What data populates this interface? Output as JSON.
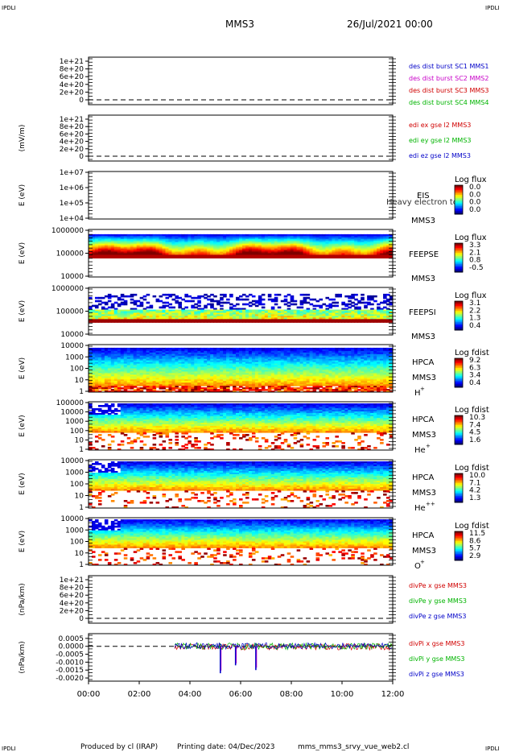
{
  "header": {
    "corner_left_top": "IPDLI",
    "corner_right_top": "IPDLI",
    "corner_left_bottom": "IPDLI",
    "corner_right_bottom": "IPDLI",
    "title": "MMS3",
    "date": "26/Jul/2021 00:00"
  },
  "footer": {
    "produced": "Produced by cl (IRAP)",
    "printing": "Printing date: 04/Dec/2023",
    "script": "mms_mms3_srvy_vue_web2.cl"
  },
  "chart_data": [
    {
      "type": "line",
      "id": "p1",
      "ylabel": "",
      "yticks": [
        "1e+21",
        "8e+20",
        "6e+20",
        "4e+20",
        "2e+20",
        "0"
      ],
      "legend": [
        {
          "name": "des dist burst SC1 MMS1",
          "color": "#0000c8"
        },
        {
          "name": "des dist burst SC2 MMS2",
          "color": "#c800c8"
        },
        {
          "name": "des dist burst SC3 MMS3",
          "color": "#d00000"
        },
        {
          "name": "des dist burst SC4 MMS4",
          "color": "#00b400"
        }
      ],
      "zero_dashed": true
    },
    {
      "type": "line",
      "id": "p2",
      "ylabel": "(mV/m)",
      "yticks": [
        "1e+21",
        "8e+20",
        "6e+20",
        "4e+20",
        "2e+20",
        "0"
      ],
      "legend": [
        {
          "name": "edi ex gse l2 MMS3",
          "color": "#d00000"
        },
        {
          "name": "edi ey gse l2 MMS3",
          "color": "#00b400"
        },
        {
          "name": "edi ez gse l2 MMS3",
          "color": "#0000c8"
        }
      ],
      "zero_dashed": true
    },
    {
      "type": "heatmap",
      "id": "p3",
      "ylabel": "E (eV)",
      "yticks": [
        "1e+07",
        "1e+06",
        "1e+05",
        "1e+04"
      ],
      "labels": [
        "EIS",
        "MMS3"
      ],
      "overlay": "Heavy electron to",
      "cbar_title": "Log flux",
      "cbar_ticks": [
        "0.0",
        "0.0",
        "0.0",
        "0.0"
      ],
      "empty": true
    },
    {
      "type": "heatmap",
      "id": "p4",
      "ylabel": "E (eV)",
      "yticks": [
        "1000000",
        "100000",
        "10000"
      ],
      "labels": [
        "FEEPSE",
        "MMS3"
      ],
      "cbar_title": "Log flux",
      "cbar_ticks": [
        "3.3",
        "2.1",
        "0.8",
        "-0.5"
      ]
    },
    {
      "type": "heatmap",
      "id": "p5",
      "ylabel": "E (eV)",
      "yticks": [
        "1000000",
        "100000",
        "10000"
      ],
      "labels": [
        "FEEPSI",
        "MMS3"
      ],
      "cbar_title": "Log flux",
      "cbar_ticks": [
        "3.1",
        "2.2",
        "1.3",
        "0.4"
      ]
    },
    {
      "type": "heatmap",
      "id": "p6",
      "ylabel": "E (eV)",
      "yticks": [
        "10000",
        "1000",
        "100",
        "10",
        "1"
      ],
      "labels": [
        "HPCA",
        "MMS3"
      ],
      "species": "H",
      "species_sup": "+",
      "cbar_title": "Log fdist",
      "cbar_ticks": [
        "9.2",
        "6.3",
        "3.4",
        "0.4"
      ]
    },
    {
      "type": "heatmap",
      "id": "p7",
      "ylabel": "E (eV)",
      "yticks": [
        "100000",
        "10000",
        "1000",
        "100",
        "10",
        "1"
      ],
      "labels": [
        "HPCA",
        "MMS3"
      ],
      "species": "He",
      "species_sup": "+",
      "cbar_title": "Log fdist",
      "cbar_ticks": [
        "10.3",
        "7.4",
        "4.5",
        "1.6"
      ]
    },
    {
      "type": "heatmap",
      "id": "p8",
      "ylabel": "E (eV)",
      "yticks": [
        "10000",
        "1000",
        "100",
        "10",
        "1"
      ],
      "labels": [
        "HPCA",
        "MMS3"
      ],
      "species": "He",
      "species_sup": "++",
      "cbar_title": "Log fdist",
      "cbar_ticks": [
        "10.0",
        "7.1",
        "4.2",
        "1.3"
      ]
    },
    {
      "type": "heatmap",
      "id": "p9",
      "ylabel": "E (eV)",
      "yticks": [
        "10000",
        "1000",
        "100",
        "10",
        "1"
      ],
      "labels": [
        "HPCA",
        "MMS3"
      ],
      "species": "O",
      "species_sup": "+",
      "cbar_title": "Log fdist",
      "cbar_ticks": [
        "11.5",
        "8.6",
        "5.7",
        "2.9"
      ]
    },
    {
      "type": "line",
      "id": "p10",
      "ylabel": "(nPa/km)",
      "yticks": [
        "1e+21",
        "8e+20",
        "6e+20",
        "4e+20",
        "2e+20",
        "0"
      ],
      "legend": [
        {
          "name": "divPe x gse MMS3",
          "color": "#d00000"
        },
        {
          "name": "divPe y gse MMS3",
          "color": "#00b400"
        },
        {
          "name": "divPe z gse MMS3",
          "color": "#0000c8"
        }
      ],
      "zero_dashed": true
    },
    {
      "type": "line",
      "id": "p11",
      "ylabel": "(nPa/km)",
      "yticks": [
        "0.0005",
        "0.0000",
        "-0.0005",
        "-0.0010",
        "-0.0015",
        "-0.0020"
      ],
      "ylim": [
        -0.0022,
        0.0008
      ],
      "legend": [
        {
          "name": "divPi x gse MMS3",
          "color": "#d00000"
        },
        {
          "name": "divPi y gse MMS3",
          "color": "#00b400"
        },
        {
          "name": "divPi z gse MMS3",
          "color": "#0000c8"
        }
      ],
      "data_start_hour": 3.4,
      "spikes": [
        {
          "x_hour": 5.2,
          "y": -0.0017
        },
        {
          "x_hour": 5.8,
          "y": -0.0012
        },
        {
          "x_hour": 6.6,
          "y": -0.0015
        }
      ],
      "zero_dashed": true
    }
  ],
  "xaxis": {
    "ticks": [
      "00:00",
      "02:00",
      "04:00",
      "06:00",
      "08:00",
      "10:00",
      "12:00"
    ]
  }
}
